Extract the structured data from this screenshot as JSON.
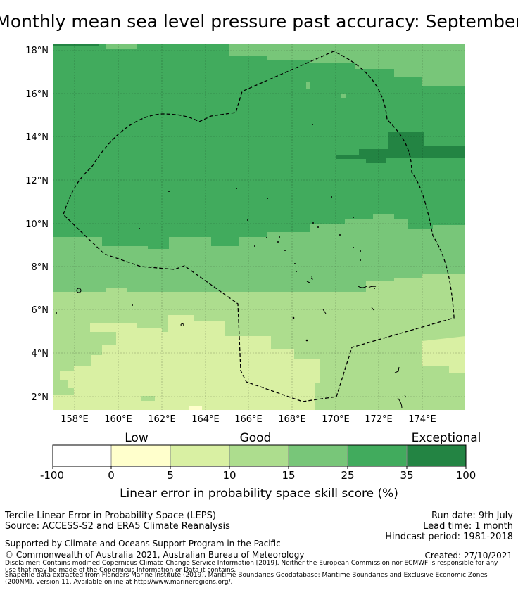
{
  "title": "Monthly mean sea level pressure past accuracy: September",
  "map": {
    "x_ticks": [
      "158°E",
      "160°E",
      "162°E",
      "164°E",
      "166°E",
      "168°E",
      "170°E",
      "172°E",
      "174°E"
    ],
    "y_ticks": [
      "18°N",
      "16°N",
      "14°N",
      "12°N",
      "10°N",
      "8°N",
      "6°N",
      "4°N",
      "2°N"
    ]
  },
  "colorbar": {
    "category_labels": [
      "Low",
      "Good",
      "Exceptional"
    ],
    "tick_labels": [
      "-100",
      "0",
      "5",
      "10",
      "15",
      "25",
      "35",
      "100"
    ],
    "bin_colors": [
      "#ffffff",
      "#ffffcc",
      "#d9f0a3",
      "#addd8e",
      "#78c679",
      "#41ab5d",
      "#238443"
    ],
    "xlabel": "Linear error in probability space skill score (%)"
  },
  "footer": {
    "line1": "Tercile Linear Error in Probability Space (LEPS)",
    "line2": "Source: ACCESS-S2 and ERA5 Climate Reanalysis",
    "run_date": "Run date: 9th July",
    "lead_time": "Lead time: 1 month",
    "hindcast": "Hindcast period: 1981-2018",
    "support": "Supported by Climate and Oceans Support Program in the Pacific",
    "copyright": "© Commonwealth of Australia 2021, Australian Bureau of Meteorology",
    "created": "Created: 27/10/2021",
    "disclaimer1": "Disclaimer: Contains modified Copernicus Climate Change Service Information [2019]. Neither the European Commission nor ECMWF is responsible for any",
    "disclaimer2": "use that may be made of the Copernicus Information or Data it contains.",
    "shapefile1": "Shapefile data extracted from Flanders Marine Institute (2019), Maritime Boundaries Geodatabase: Maritime Boundaries and Exclusive Economic Zones",
    "shapefile2": "(200NM), version 11. Available online at http://www.marineregions.org/."
  }
}
